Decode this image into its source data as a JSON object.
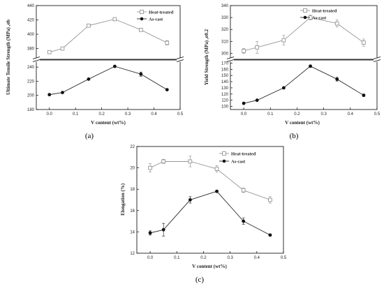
{
  "chart_data": [
    {
      "type": "line",
      "panel_label": "(a)",
      "xlabel": "V content (wt%)",
      "ylabel": "Ultimate Tensile Strength (MPa) ,σb",
      "xlim": [
        -0.05,
        0.5
      ],
      "x_ticks": [
        "0.0",
        "0.1",
        "0.2",
        "0.3",
        "0.4",
        "0.5"
      ],
      "broken_y_axis": true,
      "upper_ylim": [
        365,
        440
      ],
      "upper_y_ticks": [
        "380",
        "400",
        "420",
        "440"
      ],
      "lower_ylim": [
        180,
        250
      ],
      "lower_y_ticks": [
        "180",
        "200",
        "220",
        "240"
      ],
      "legend_position": "top-right",
      "series": [
        {
          "name": "Heat-treated",
          "marker": "open-square",
          "color": "#8a8a8a",
          "x": [
            0.0,
            0.05,
            0.15,
            0.25,
            0.35,
            0.45
          ],
          "y": [
            375,
            380,
            412,
            421,
            406,
            388
          ],
          "err": [
            2,
            2,
            2,
            2,
            2,
            3
          ]
        },
        {
          "name": "As-cast",
          "marker": "filled-circle",
          "color": "#111111",
          "x": [
            0.0,
            0.05,
            0.15,
            0.25,
            0.35,
            0.45
          ],
          "y": [
            201,
            204,
            223,
            241,
            230,
            208
          ],
          "err": [
            1,
            1,
            1,
            1,
            3,
            1
          ]
        }
      ]
    },
    {
      "type": "line",
      "panel_label": "(b)",
      "xlabel": "V content (wt%)",
      "ylabel": "Yield Strength (MPa) ,σ0.2",
      "xlim": [
        -0.05,
        0.5
      ],
      "x_ticks": [
        "0.0",
        "0.1",
        "0.2",
        "0.3",
        "0.4",
        "0.5"
      ],
      "broken_y_axis": true,
      "upper_ylim": [
        295,
        340
      ],
      "upper_y_ticks": [
        "300",
        "310",
        "320",
        "330",
        "340"
      ],
      "lower_ylim": [
        95,
        175
      ],
      "lower_y_ticks": [
        "100",
        "110",
        "120",
        "130",
        "140",
        "150",
        "160",
        "170"
      ],
      "legend_position": "top-right",
      "series": [
        {
          "name": "Heat-treated",
          "marker": "open-square",
          "color": "#8a8a8a",
          "x": [
            0.0,
            0.05,
            0.15,
            0.25,
            0.35,
            0.45
          ],
          "y": [
            302,
            305,
            311,
            330,
            325,
            309
          ],
          "err": [
            2,
            5,
            4,
            2,
            3,
            3
          ]
        },
        {
          "name": "As-cast",
          "marker": "filled-circle",
          "color": "#111111",
          "x": [
            0.0,
            0.05,
            0.15,
            0.25,
            0.35,
            0.45
          ],
          "y": [
            105,
            110,
            130,
            165,
            144,
            118
          ],
          "err": [
            1,
            1,
            1,
            2,
            3,
            2
          ]
        }
      ]
    },
    {
      "type": "line",
      "panel_label": "(c)",
      "xlabel": "V content (wt%)",
      "ylabel": "Elongation (%)",
      "xlim": [
        -0.05,
        0.5
      ],
      "x_ticks": [
        "0.0",
        "0.1",
        "0.2",
        "0.3",
        "0.4",
        "0.5"
      ],
      "broken_y_axis": false,
      "ylim": [
        12,
        22
      ],
      "y_ticks": [
        "12",
        "14",
        "16",
        "18",
        "20",
        "22"
      ],
      "legend_position": "top-right",
      "series": [
        {
          "name": "Heat-treated",
          "marker": "open-square",
          "color": "#8a8a8a",
          "x": [
            0.0,
            0.05,
            0.15,
            0.25,
            0.35,
            0.45
          ],
          "y": [
            20.0,
            20.6,
            20.6,
            19.9,
            17.9,
            17.0
          ],
          "err": [
            0.4,
            0.2,
            0.5,
            0.3,
            0.2,
            0.3
          ]
        },
        {
          "name": "As-cast",
          "marker": "filled-circle",
          "color": "#111111",
          "x": [
            0.0,
            0.05,
            0.15,
            0.25,
            0.35,
            0.45
          ],
          "y": [
            13.9,
            14.2,
            17.0,
            17.8,
            15.0,
            13.7
          ],
          "err": [
            0.2,
            0.6,
            0.3,
            0.1,
            0.3,
            0.1
          ]
        }
      ]
    }
  ]
}
